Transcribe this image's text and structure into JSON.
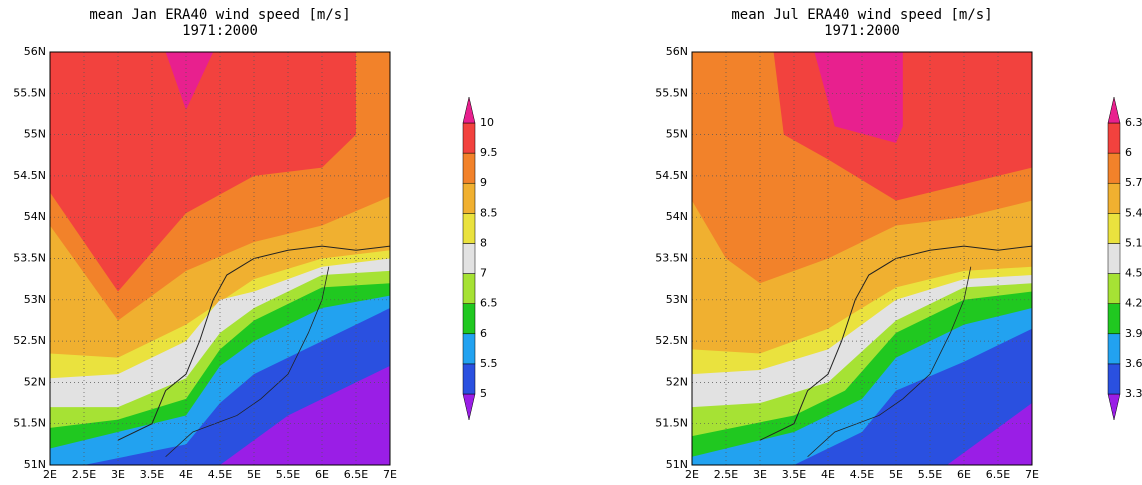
{
  "maps": [
    {
      "title": "mean Jan ERA40 wind speed [m/s]",
      "subtitle": "1971:2000",
      "xticks": [
        "2E",
        "2.5E",
        "3E",
        "3.5E",
        "4E",
        "4.5E",
        "5E",
        "5.5E",
        "6E",
        "6.5E",
        "7E"
      ],
      "yticks": [
        "56N",
        "55.5N",
        "55N",
        "54.5N",
        "54N",
        "53.5N",
        "53N",
        "52.5N",
        "52N",
        "51.5N",
        "51N"
      ],
      "colorbar": {
        "levels": [
          5,
          5.5,
          6,
          6.5,
          7,
          8,
          8.5,
          9,
          9.5,
          10
        ],
        "colors": [
          "#9a1ee6",
          "#2a50e0",
          "#22a2f0",
          "#20c820",
          "#a6e234",
          "#e2e2e2",
          "#eae23e",
          "#f0b030",
          "#f2822a",
          "#f2423e",
          "#e8208e"
        ]
      }
    },
    {
      "title": "mean Jul ERA40 wind speed [m/s]",
      "subtitle": "1971:2000",
      "xticks": [
        "2E",
        "2.5E",
        "3E",
        "3.5E",
        "4E",
        "4.5E",
        "5E",
        "5.5E",
        "6E",
        "6.5E",
        "7E"
      ],
      "yticks": [
        "56N",
        "55.5N",
        "55N",
        "54.5N",
        "54N",
        "53.5N",
        "53N",
        "52.5N",
        "52N",
        "51.5N",
        "51N"
      ],
      "colorbar": {
        "levels": [
          3.3,
          3.6,
          3.9,
          4.2,
          4.5,
          5.1,
          5.4,
          5.7,
          6,
          6.3
        ],
        "colors": [
          "#9a1ee6",
          "#2a50e0",
          "#22a2f0",
          "#20c820",
          "#a6e234",
          "#e2e2e2",
          "#eae23e",
          "#f0b030",
          "#f2822a",
          "#f2423e",
          "#e8208e"
        ]
      }
    }
  ]
}
